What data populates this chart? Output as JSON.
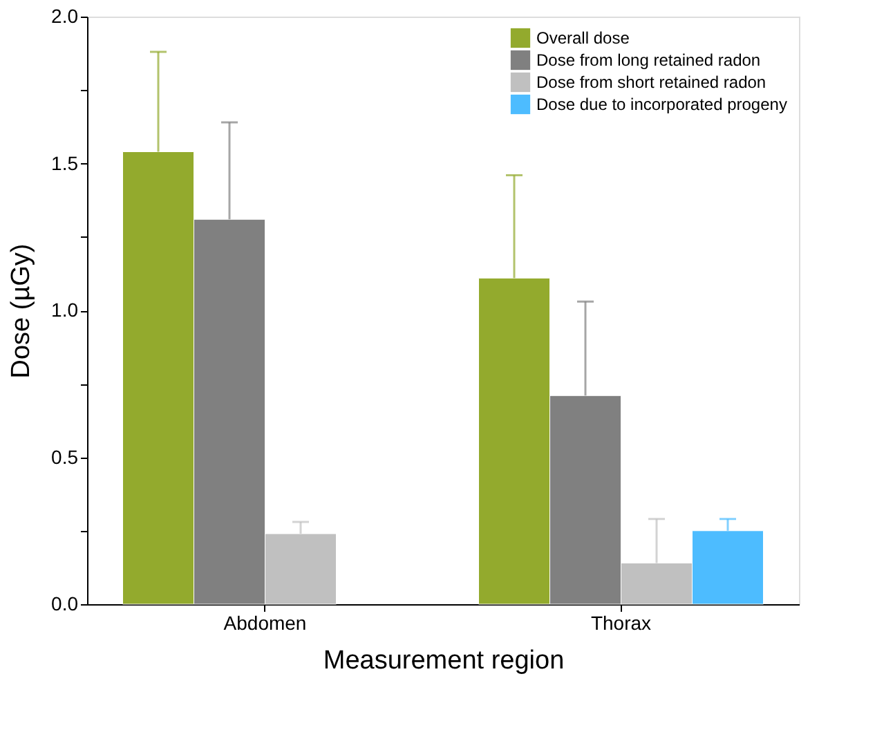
{
  "chart_data": {
    "type": "bar",
    "xlabel": "Measurement region",
    "ylabel": "Dose (µGy)",
    "categories": [
      "Abdomen",
      "Thorax"
    ],
    "series": [
      {
        "name": "Overall dose",
        "color": "#93aa2d",
        "values": [
          1.54,
          1.11
        ],
        "errors": [
          [
            1.54,
            1.88
          ],
          [
            1.11,
            1.46
          ]
        ]
      },
      {
        "name": "Dose from long retained radon",
        "color": "#808080",
        "values": [
          1.31,
          0.71
        ],
        "errors": [
          [
            1.31,
            1.64
          ],
          [
            0.71,
            1.03
          ]
        ]
      },
      {
        "name": "Dose from short retained radon",
        "color": "#c0c0c0",
        "values": [
          0.24,
          0.14
        ],
        "errors": [
          [
            0.24,
            0.28
          ],
          [
            0.14,
            0.29
          ]
        ]
      },
      {
        "name": "Dose due to incorporated progeny",
        "color": "#4dbcff",
        "values": [
          null,
          0.25
        ],
        "errors": [
          null,
          [
            0.25,
            0.29
          ]
        ]
      }
    ],
    "ylim": [
      0,
      2.0
    ],
    "yticks": [
      {
        "value": 0,
        "label": "0.0"
      },
      {
        "value": 0.25,
        "label": null
      },
      {
        "value": 0.5,
        "label": "0.5"
      },
      {
        "value": 0.75,
        "label": null
      },
      {
        "value": 1.0,
        "label": "1.0"
      },
      {
        "value": 1.25,
        "label": null
      },
      {
        "value": 1.5,
        "label": "1.5"
      },
      {
        "value": 1.75,
        "label": null
      },
      {
        "value": 2.0,
        "label": "2.0"
      }
    ],
    "grid": false,
    "legend": "top right"
  }
}
